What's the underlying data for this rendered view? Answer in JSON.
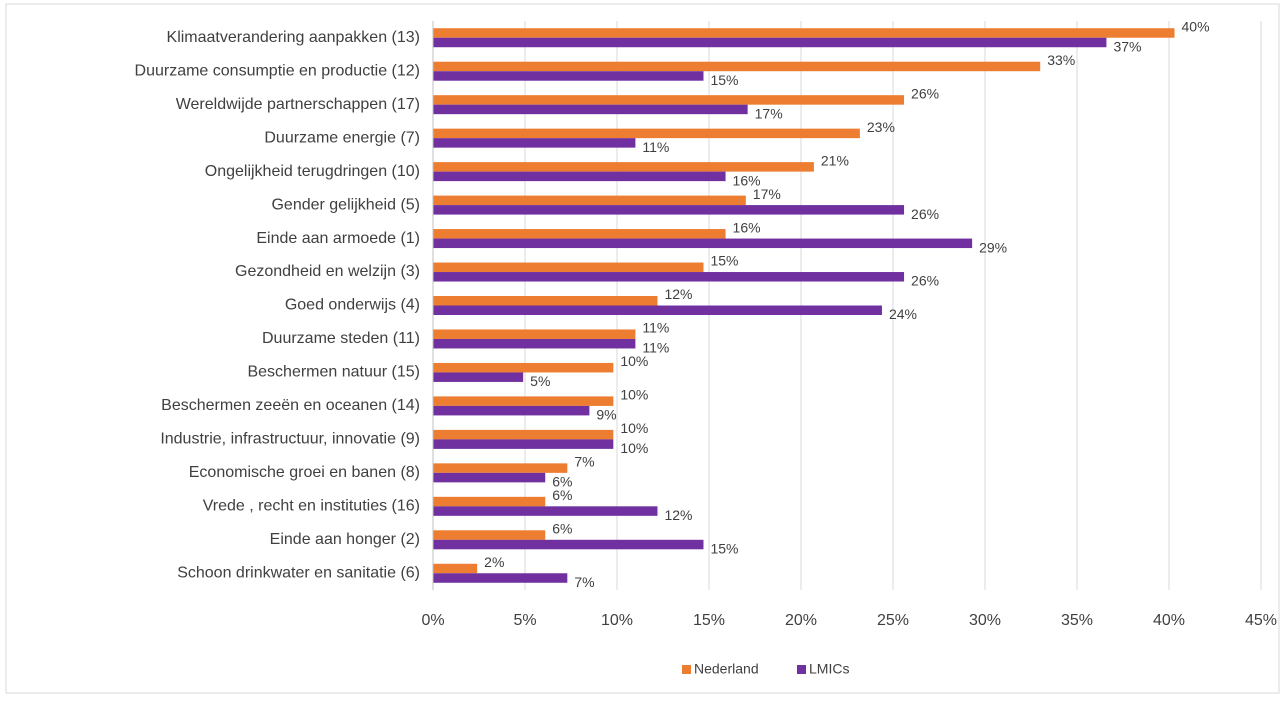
{
  "chart_data": {
    "type": "bar",
    "orientation": "horizontal",
    "categories": [
      "Klimaatverandering aanpakken (13)",
      "Duurzame consumptie en productie (12)",
      "Wereldwijde partnerschappen  (17)",
      "Duurzame energie (7)",
      "Ongelijkheid terugdringen (10)",
      "Gender gelijkheid (5)",
      "Einde aan armoede (1)",
      "Gezondheid en welzijn (3)",
      "Goed onderwijs  (4)",
      "Duurzame steden (11)",
      "Beschermen natuur (15)",
      "Beschermen zeeën en oceanen (14)",
      "Industrie, infrastructuur, innovatie (9)",
      "Economische groei en banen (8)",
      "Vrede , recht en instituties  (16)",
      "Einde aan honger (2)",
      "Schoon drinkwater en sanitatie (6)"
    ],
    "series": [
      {
        "name": "Nederland",
        "color": "#ed7d31",
        "values": [
          40.3,
          33.0,
          25.6,
          23.2,
          20.7,
          17.0,
          15.9,
          14.7,
          12.2,
          11.0,
          9.8,
          9.8,
          9.8,
          7.3,
          6.1,
          6.1,
          2.4
        ],
        "value_labels": [
          "40%",
          "33%",
          "26%",
          "23%",
          "21%",
          "17%",
          "16%",
          "15%",
          "12%",
          "11%",
          "10%",
          "10%",
          "10%",
          "7%",
          "6%",
          "6%",
          "2%"
        ]
      },
      {
        "name": "LMICs",
        "color": "#7030a0",
        "values": [
          36.6,
          14.7,
          17.1,
          11.0,
          15.9,
          25.6,
          29.3,
          25.6,
          24.4,
          11.0,
          4.9,
          8.5,
          9.8,
          6.1,
          12.2,
          14.7,
          7.3
        ],
        "value_labels": [
          "37%",
          "15%",
          "17%",
          "11%",
          "16%",
          "26%",
          "29%",
          "26%",
          "24%",
          "11%",
          "5%",
          "9%",
          "10%",
          "6%",
          "12%",
          "15%",
          "7%"
        ]
      }
    ],
    "xlim": [
      0,
      45
    ],
    "xticks": [
      {
        "value": 0,
        "label": "0%"
      },
      {
        "value": 5,
        "label": "5%"
      },
      {
        "value": 10,
        "label": "10%"
      },
      {
        "value": 15,
        "label": "15%"
      },
      {
        "value": 20,
        "label": "20%"
      },
      {
        "value": 25,
        "label": "25%"
      },
      {
        "value": 30,
        "label": "30%"
      },
      {
        "value": 35,
        "label": "35%"
      },
      {
        "value": 40,
        "label": "40%"
      },
      {
        "value": 45,
        "label": "45%"
      }
    ],
    "grid": true,
    "legend": "bottom"
  }
}
